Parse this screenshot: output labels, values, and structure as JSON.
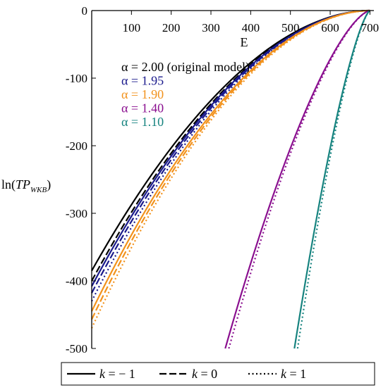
{
  "chart_data": {
    "type": "line",
    "xlabel": "E",
    "ylabel": {
      "main": "ln",
      "tp": "TP",
      "sub": "WKB"
    },
    "xlim": [
      0,
      710
    ],
    "ylim": [
      -500,
      0
    ],
    "x_ticks": [
      100,
      200,
      300,
      400,
      500,
      600,
      700
    ],
    "y_ticks": [
      0,
      -100,
      -200,
      -300,
      -400,
      -500
    ],
    "grid": false,
    "colors": {
      "a200": "#000000",
      "a195": "#1a1a8c",
      "a190": "#f2921c",
      "a140": "#8a0f8f",
      "a110": "#16837f"
    },
    "alpha_labels": [
      {
        "key": "a200",
        "text": "α = 2.00 (original model)"
      },
      {
        "key": "a195",
        "text": "α = 1.95"
      },
      {
        "key": "a190",
        "text": "α = 1.90"
      },
      {
        "key": "a140",
        "text": "α = 1.40"
      },
      {
        "key": "a110",
        "text": "α = 1.10"
      }
    ],
    "series": [
      {
        "group": "a200",
        "k": -1,
        "x_end": 700,
        "x0": 0,
        "y0": -385,
        "curv": 1.9
      },
      {
        "group": "a200",
        "k": 0,
        "x_end": 700,
        "x0": 0,
        "y0": -400,
        "curv": 1.9
      },
      {
        "group": "a195",
        "k": -1,
        "x_end": 700,
        "x0": 0,
        "y0": -408,
        "curv": 1.9
      },
      {
        "group": "a195",
        "k": 0,
        "x_end": 700,
        "x0": 0,
        "y0": -418,
        "curv": 1.9
      },
      {
        "group": "a195",
        "k": 1,
        "x_end": 700,
        "x0": 0,
        "y0": -430,
        "curv": 1.9
      },
      {
        "group": "a190",
        "k": -1,
        "x_end": 700,
        "x0": 0,
        "y0": -445,
        "curv": 1.9
      },
      {
        "group": "a190",
        "k": 0,
        "x_end": 700,
        "x0": 0,
        "y0": -457,
        "curv": 1.9
      },
      {
        "group": "a190",
        "k": 1,
        "x_end": 700,
        "x0": 0,
        "y0": -470,
        "curv": 1.9
      },
      {
        "group": "a140",
        "k": -1,
        "x_end": 700,
        "x0": 336,
        "y0": -500,
        "curv": 1.5
      },
      {
        "group": "a140",
        "k": 1,
        "x_end": 700,
        "x0": 345,
        "y0": -500,
        "curv": 1.5
      },
      {
        "group": "a110",
        "k": -1,
        "x_end": 700,
        "x0": 510,
        "y0": -500,
        "curv": 1.4
      },
      {
        "group": "a110",
        "k": 1,
        "x_end": 700,
        "x0": 518,
        "y0": -500,
        "curv": 1.4
      }
    ],
    "legend": [
      {
        "k_label": "k",
        "eq": " = − 1",
        "style": "solid"
      },
      {
        "k_label": "k",
        "eq": " = 0",
        "style": "dash"
      },
      {
        "k_label": "k",
        "eq": " = 1",
        "style": "dot"
      }
    ]
  }
}
